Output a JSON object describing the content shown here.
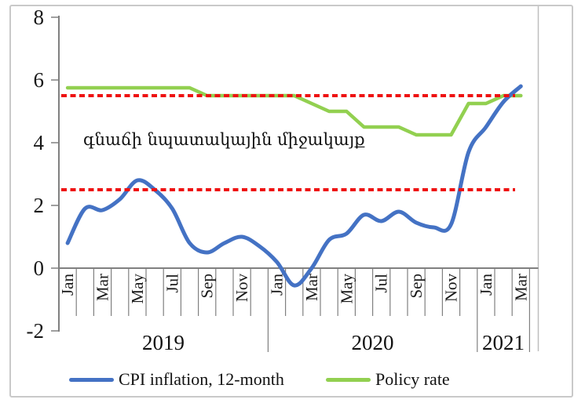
{
  "chart_data": {
    "type": "line",
    "annotation": "գնաճի նպատակային միջակայք",
    "y_axis": {
      "min": -2,
      "max": 8,
      "tick_step": 2,
      "ticks": [
        8,
        6,
        4,
        2,
        0,
        -2
      ]
    },
    "x_axis": {
      "n_months": 27,
      "month_labels": [
        "Jan",
        "",
        "Mar",
        "",
        "May",
        "",
        "Jul",
        "",
        "Sep",
        "",
        "Nov",
        "",
        "Jan",
        "",
        "Mar",
        "",
        "May",
        "",
        "Jul",
        "",
        "Sep",
        "",
        "Nov",
        "",
        "Jan",
        "",
        "Mar"
      ],
      "years": [
        {
          "label": "2019",
          "months": 12
        },
        {
          "label": "2020",
          "months": 12
        },
        {
          "label": "2021",
          "months": 3
        }
      ]
    },
    "series": [
      {
        "name": "CPI inflation, 12-month",
        "color": "#4472C4",
        "smooth": true,
        "stroke_width": 5,
        "values": [
          0.8,
          1.9,
          1.85,
          2.2,
          2.8,
          2.5,
          1.9,
          0.8,
          0.5,
          0.8,
          1.0,
          0.7,
          0.2,
          -0.55,
          0.0,
          0.9,
          1.1,
          1.7,
          1.5,
          1.8,
          1.45,
          1.3,
          1.4,
          3.7,
          4.5,
          5.3,
          5.8
        ]
      },
      {
        "name": "Policy rate",
        "color": "#92D050",
        "smooth": false,
        "stroke_width": 4.5,
        "values": [
          5.75,
          5.75,
          5.75,
          5.75,
          5.75,
          5.75,
          5.75,
          5.75,
          5.5,
          5.5,
          5.5,
          5.5,
          5.5,
          5.5,
          5.25,
          5.0,
          5.0,
          4.5,
          4.5,
          4.5,
          4.25,
          4.25,
          4.25,
          5.25,
          5.25,
          5.5,
          5.5
        ]
      }
    ],
    "reference_lines": [
      {
        "name": "inflation-target-upper",
        "value": 5.5,
        "color": "#EE1111",
        "style": "dashed"
      },
      {
        "name": "inflation-target-lower",
        "value": 2.5,
        "color": "#EE1111",
        "style": "dashed"
      }
    ],
    "legend_position": "bottom",
    "grid": false,
    "axis_color": "#808080",
    "plot_border_color": "#bfbfbf"
  }
}
